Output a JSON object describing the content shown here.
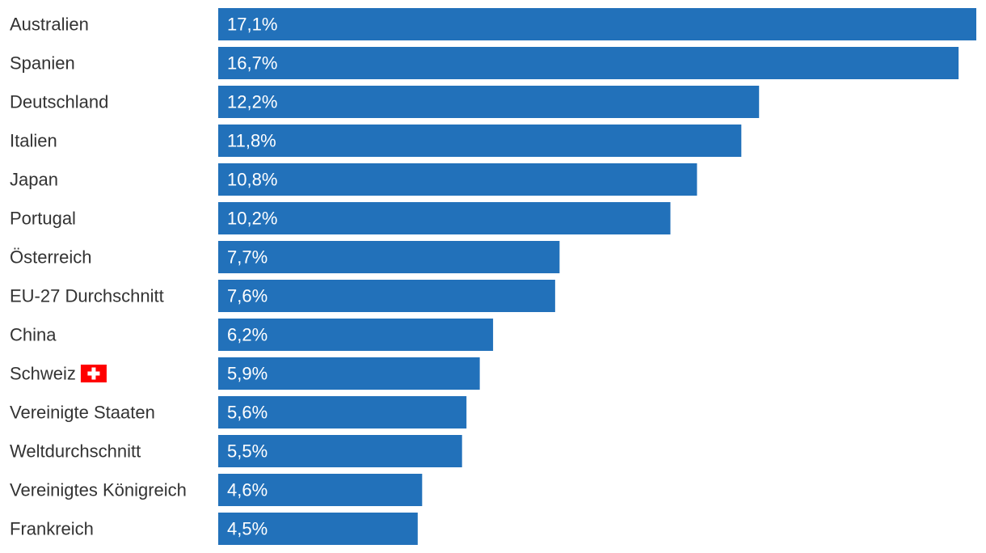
{
  "chart_data": {
    "type": "bar",
    "orientation": "horizontal",
    "categories": [
      "Australien",
      "Spanien",
      "Deutschland",
      "Italien",
      "Japan",
      "Portugal",
      "Österreich",
      "EU-27 Durchschnitt",
      "China",
      "Schweiz",
      "Vereinigte Staaten",
      "Weltdurchschnitt",
      "Vereinigtes Königreich",
      "Frankreich"
    ],
    "values": [
      17.1,
      16.7,
      12.2,
      11.8,
      10.8,
      10.2,
      7.7,
      7.6,
      6.2,
      5.9,
      5.6,
      5.5,
      4.6,
      4.5
    ],
    "value_labels": [
      "17,1%",
      "16,7%",
      "12,2%",
      "11,8%",
      "10,8%",
      "10,2%",
      "7,7%",
      "7,6%",
      "6,2%",
      "5,9%",
      "5,6%",
      "5,5%",
      "4,6%",
      "4,5%"
    ],
    "xlim": [
      0,
      17.1
    ],
    "grid": false,
    "legend": "none",
    "flag_icon": {
      "category": "Schweiz",
      "icon": "swiss-flag-icon"
    },
    "colors": {
      "bar": "#2271BA",
      "label": "#333333",
      "value_text": "#FFFFFF",
      "flag_red": "#FF0000",
      "flag_cross": "#FFFFFF"
    }
  }
}
